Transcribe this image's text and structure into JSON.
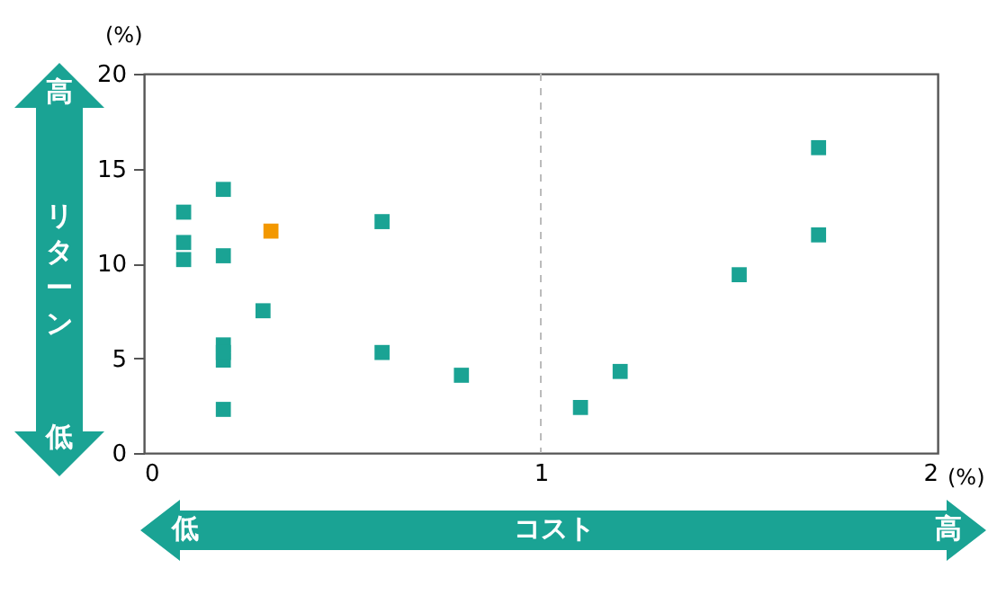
{
  "chart_data": {
    "type": "scatter",
    "xlabel": "(%)",
    "ylabel": "(%)",
    "xlim": [
      0,
      2
    ],
    "xticks": [
      0,
      1,
      2
    ],
    "ylim": [
      0,
      20
    ],
    "yticks": [
      0,
      5,
      10,
      15,
      20
    ],
    "grid": false,
    "marker": "square",
    "legend": false,
    "series": [
      {
        "color": "#1aa394",
        "x": [
          0.1,
          0.1,
          0.1,
          0.2,
          0.2,
          0.3,
          0.2,
          0.2,
          0.2,
          0.6,
          0.6,
          0.8,
          1.1,
          1.2,
          1.5,
          1.7,
          1.7,
          0.2
        ],
        "values": [
          12.7,
          11.1,
          10.2,
          13.9,
          10.4,
          7.5,
          5.7,
          4.9,
          2.3,
          12.2,
          5.3,
          4.1,
          2.4,
          4.3,
          9.4,
          16.1,
          11.5,
          5.3
        ]
      },
      {
        "color": "#f39800",
        "x": [
          0.32
        ],
        "values": [
          11.7
        ]
      }
    ],
    "ref_lines": [
      {
        "axis": "x",
        "value": 1,
        "color": "#bbbbbb",
        "line_style": "dashed"
      }
    ],
    "annotations": [
      "高",
      "リターン",
      "低",
      "低",
      "コスト",
      "高"
    ]
  }
}
